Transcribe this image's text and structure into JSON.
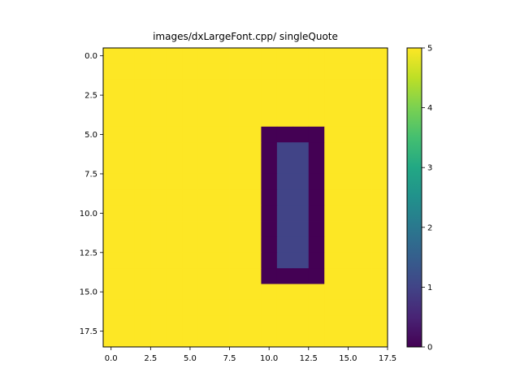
{
  "chart_data": {
    "type": "heatmap",
    "title": "images/dxLargeFont.cpp/ singleQuote",
    "xlabel": "",
    "ylabel": "",
    "rows": 19,
    "cols": 18,
    "x_extent": [
      -0.5,
      17.5
    ],
    "y_extent": [
      18.5,
      -0.5
    ],
    "x_ticks": [
      0.0,
      2.5,
      5.0,
      7.5,
      10.0,
      12.5,
      15.0,
      17.5
    ],
    "x_tick_labels": [
      "0.0",
      "2.5",
      "5.0",
      "7.5",
      "10.0",
      "12.5",
      "15.0",
      "17.5"
    ],
    "y_ticks": [
      0.0,
      2.5,
      5.0,
      7.5,
      10.0,
      12.5,
      15.0,
      17.5
    ],
    "y_tick_labels": [
      "0.0",
      "2.5",
      "5.0",
      "7.5",
      "10.0",
      "12.5",
      "15.0",
      "17.5"
    ],
    "colormap": "viridis",
    "vmin": 0,
    "vmax": 5,
    "colorbar_ticks": [
      0,
      1,
      2,
      3,
      4,
      5
    ],
    "colorbar_tick_labels": [
      "0",
      "1",
      "2",
      "3",
      "4",
      "5"
    ],
    "background_value": 5,
    "regions": [
      {
        "value": 0,
        "rows": [
          5,
          14
        ],
        "cols": [
          10,
          13
        ]
      },
      {
        "value": 1,
        "rows": [
          6,
          13
        ],
        "cols": [
          11,
          12
        ]
      }
    ],
    "grid": false
  }
}
